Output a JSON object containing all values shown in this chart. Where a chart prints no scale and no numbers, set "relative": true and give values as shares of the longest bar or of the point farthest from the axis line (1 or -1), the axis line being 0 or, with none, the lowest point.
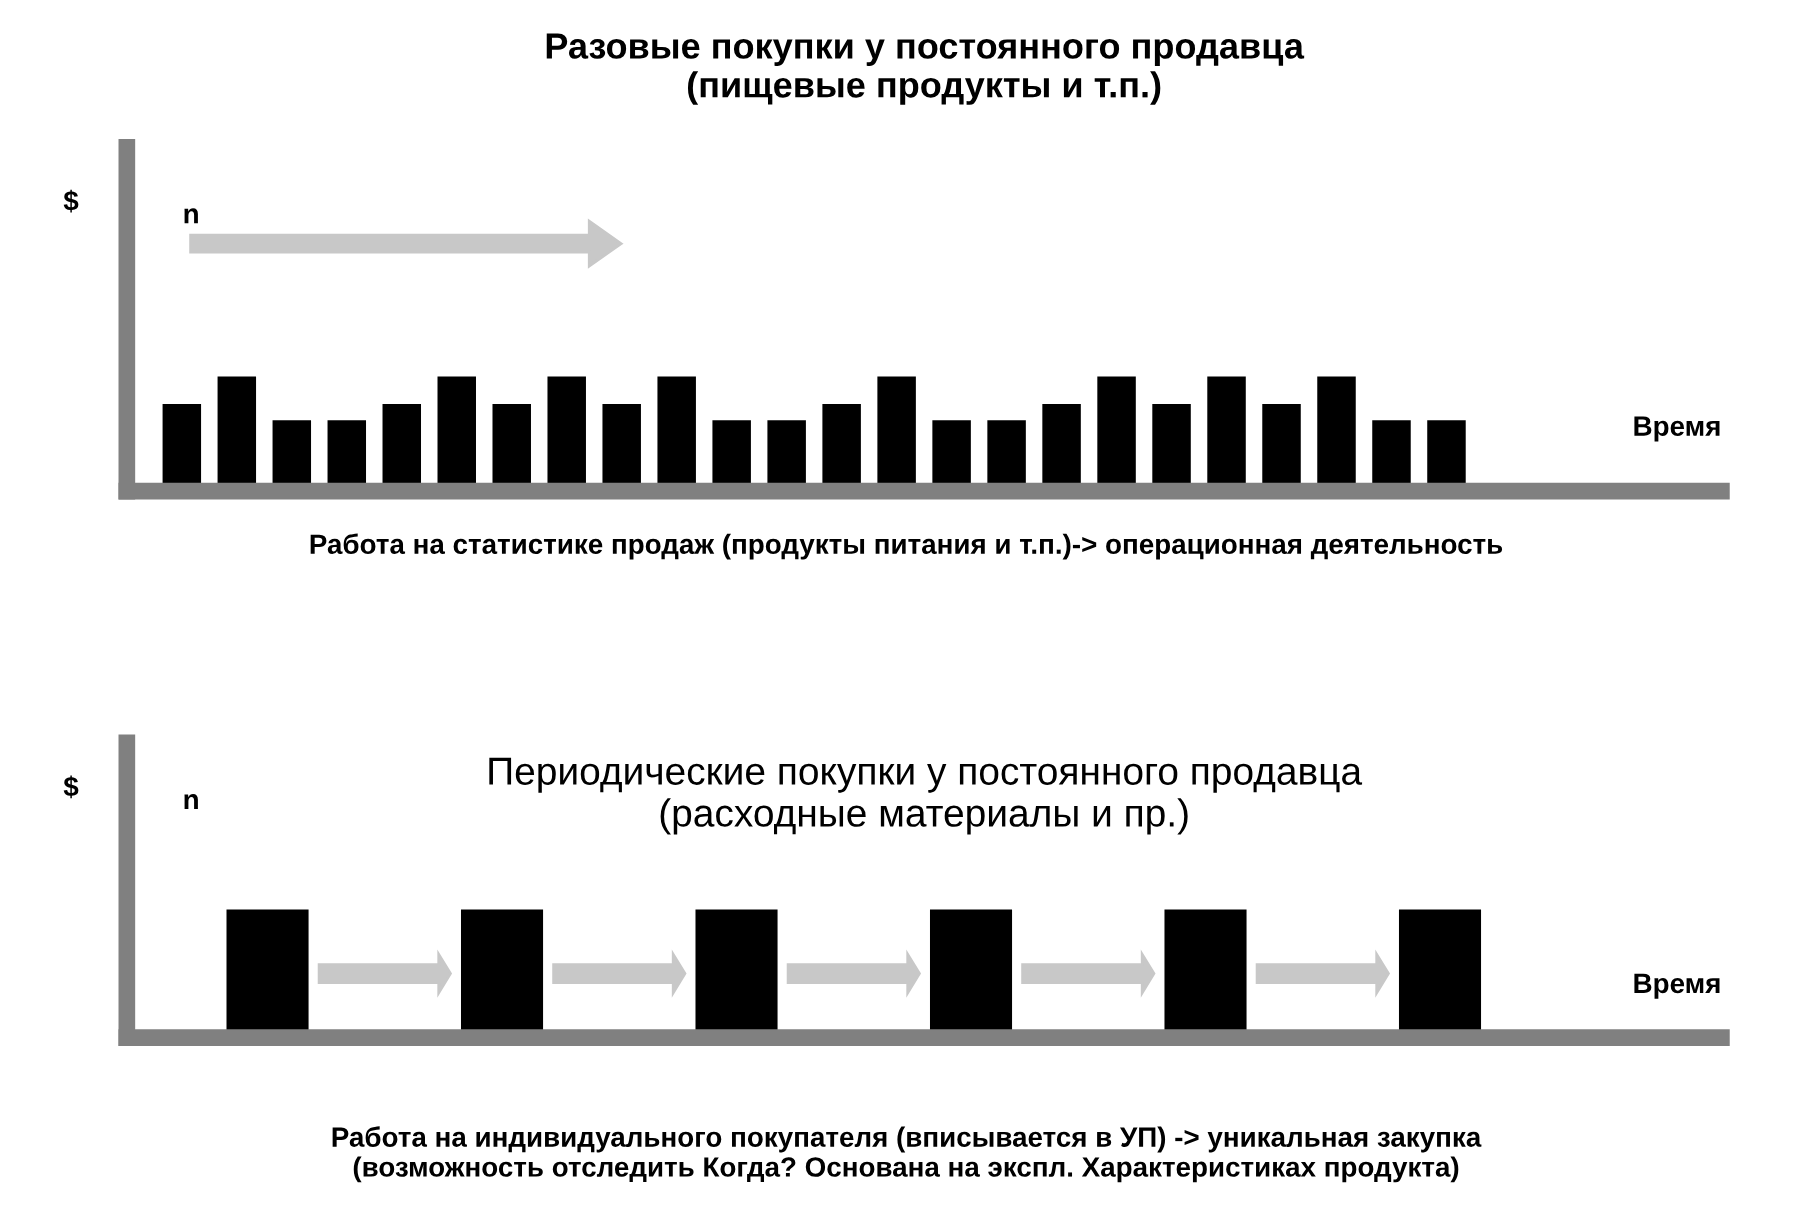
{
  "chart_data": [
    {
      "type": "bar",
      "relative": true,
      "title": "Разовые покупки у постоянного продавца\n(пищевые продукты и т.п.)",
      "ylabel": "$",
      "xlabel": "Время",
      "color": "#000000",
      "grid": false,
      "legend": false,
      "categories": [
        null,
        null,
        null,
        null,
        null,
        null,
        null,
        null,
        null,
        null,
        null,
        null,
        null,
        null,
        null,
        null,
        null,
        null,
        null,
        null,
        null,
        null,
        null,
        null
      ],
      "values": [
        0.76,
        1,
        0.62,
        0.62,
        0.76,
        1,
        0.76,
        1,
        0.76,
        1,
        0.62,
        0.62,
        0.76,
        1,
        0.62,
        0.62,
        0.76,
        1,
        0.76,
        1,
        0.76,
        1,
        0.62,
        0.62
      ],
      "annotations": [
        "n",
        "Работа на статистике продаж (продукты питания и т.п.)-> операционная деятельность"
      ]
    },
    {
      "type": "bar",
      "relative": true,
      "title": "Периодические покупки у постоянного продавца\n(расходные материалы и пр.)",
      "ylabel": "$",
      "xlabel": "Время",
      "color": "#000000",
      "grid": false,
      "legend": false,
      "categories": [
        null,
        null,
        null,
        null,
        null,
        null
      ],
      "values": [
        1,
        1,
        1,
        1,
        1,
        1
      ],
      "annotations": [
        "n",
        "Работа на индивидуального покупателя (вписывается в УП) -> уникальная закупка\n(возможность отследить Когда? Основана на экспл. Характеристиках продукта)"
      ]
    }
  ]
}
